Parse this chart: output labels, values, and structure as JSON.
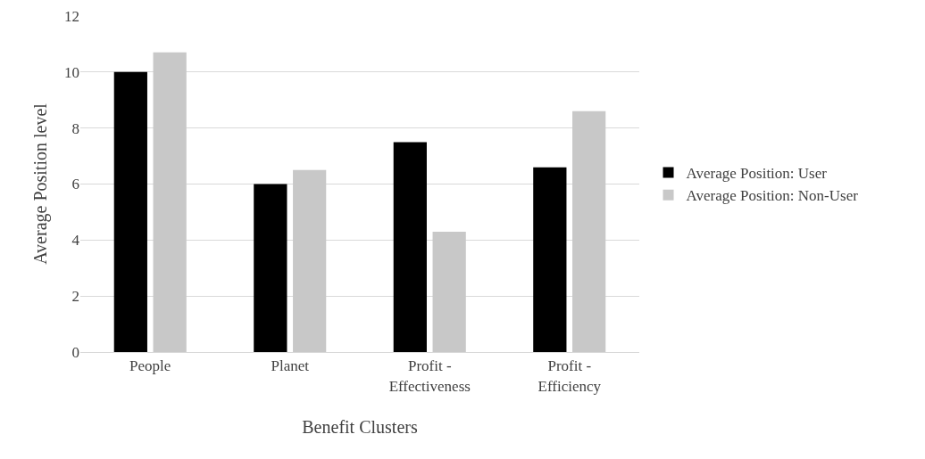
{
  "chart_data": {
    "type": "bar",
    "xlabel": "Benefit Clusters",
    "ylabel": "Average Position level",
    "categories": [
      "People",
      "Planet",
      "Profit -\nEffectiveness",
      "Profit -\nEfficiency"
    ],
    "series": [
      {
        "name": "Average Position: User",
        "color": "#000000",
        "values": [
          10,
          6,
          7.5,
          6.6
        ]
      },
      {
        "name": "Average Position: Non-User",
        "color": "#c8c8c8",
        "values": [
          10.7,
          6.5,
          4.3,
          8.6
        ]
      }
    ],
    "ylim": [
      0,
      12
    ],
    "yticks": [
      0,
      2,
      4,
      6,
      8,
      10,
      12
    ],
    "grid": "y",
    "legend": "right"
  }
}
